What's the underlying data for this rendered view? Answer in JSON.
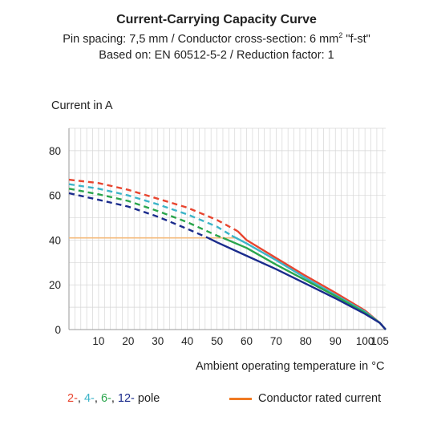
{
  "chart_data": {
    "type": "line",
    "title": "Current-Carrying Capacity Curve",
    "subtitle_1": "Pin spacing: 7,5 mm / Conductor cross-section: 6 mm",
    "subtitle_1_sup": "2",
    "subtitle_1_tail": " \"f-st\"",
    "subtitle_2": "Based on: EN 60512-5-2 / Reduction factor: 1",
    "ylabel": "Current in A",
    "xlabel": "Ambient operating temperature in °C",
    "xlim": [
      0,
      107
    ],
    "ylim": [
      0,
      90
    ],
    "x_ticks": [
      10,
      20,
      30,
      40,
      50,
      60,
      70,
      80,
      90,
      100,
      105
    ],
    "y_ticks": [
      0,
      20,
      40,
      60,
      80
    ],
    "grid": true,
    "legend": {
      "placement": "bottom",
      "pole_items": [
        {
          "text": "2-",
          "color": "#e8452f"
        },
        {
          "text": ", ",
          "color": "#222222"
        },
        {
          "text": "4-",
          "color": "#3cb4c8"
        },
        {
          "text": ", ",
          "color": "#222222"
        },
        {
          "text": "6-",
          "color": "#2aa54c"
        },
        {
          "text": ", ",
          "color": "#222222"
        },
        {
          "text": "12-",
          "color": "#1a2b8c"
        },
        {
          "text": " pole",
          "color": "#222222"
        }
      ],
      "rated_label": "Conductor rated current",
      "rated_color": "#f07a22"
    },
    "series": [
      {
        "key": "pole-2",
        "color": "#e8452f",
        "dashed_until": 57,
        "points": [
          [
            0,
            67
          ],
          [
            10,
            65.5
          ],
          [
            20,
            62.5
          ],
          [
            30,
            58.5
          ],
          [
            40,
            54.5
          ],
          [
            50,
            49
          ],
          [
            57,
            44
          ],
          [
            60,
            40
          ],
          [
            70,
            32
          ],
          [
            80,
            24
          ],
          [
            90,
            16.5
          ],
          [
            100,
            8.5
          ],
          [
            105,
            3
          ],
          [
            107,
            0
          ]
        ]
      },
      {
        "key": "pole-4",
        "color": "#3cb4c8",
        "dashed_until": 55,
        "points": [
          [
            0,
            65
          ],
          [
            10,
            63
          ],
          [
            20,
            60
          ],
          [
            30,
            56
          ],
          [
            40,
            51.5
          ],
          [
            50,
            46
          ],
          [
            55,
            42
          ],
          [
            60,
            38.5
          ],
          [
            70,
            31
          ],
          [
            80,
            23
          ],
          [
            90,
            15.5
          ],
          [
            100,
            8
          ],
          [
            105,
            3
          ],
          [
            107,
            0
          ]
        ]
      },
      {
        "key": "pole-6",
        "color": "#2aa54c",
        "dashed_until": 52,
        "points": [
          [
            0,
            63
          ],
          [
            10,
            60.5
          ],
          [
            20,
            57.5
          ],
          [
            30,
            53
          ],
          [
            40,
            48
          ],
          [
            50,
            42
          ],
          [
            52,
            41
          ],
          [
            60,
            36.5
          ],
          [
            70,
            29
          ],
          [
            80,
            22
          ],
          [
            90,
            15
          ],
          [
            100,
            7.5
          ],
          [
            105,
            3
          ],
          [
            107,
            0
          ]
        ]
      },
      {
        "key": "pole-12",
        "color": "#1a2b8c",
        "dashed_until": 47,
        "points": [
          [
            0,
            61
          ],
          [
            10,
            58
          ],
          [
            20,
            55
          ],
          [
            30,
            50.5
          ],
          [
            40,
            45
          ],
          [
            47,
            41
          ],
          [
            50,
            39
          ],
          [
            60,
            33
          ],
          [
            70,
            27
          ],
          [
            80,
            20.5
          ],
          [
            90,
            14
          ],
          [
            100,
            7
          ],
          [
            105,
            3
          ],
          [
            107,
            0
          ]
        ]
      }
    ],
    "rated_current": {
      "color": "#f4b97a",
      "points": [
        [
          0,
          41
        ],
        [
          57,
          41
        ]
      ]
    }
  }
}
